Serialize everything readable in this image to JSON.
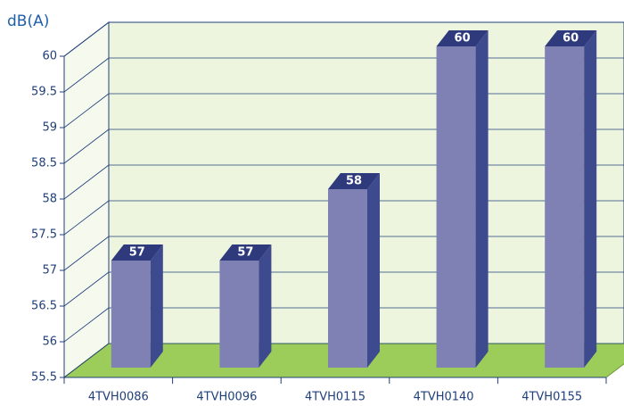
{
  "chart_data": {
    "type": "bar3d",
    "y_axis_label": "dB(A)",
    "categories": [
      "4TVH0086",
      "4TVH0096",
      "4TVH0115",
      "4TVH0140",
      "4TVH0155"
    ],
    "values": [
      57,
      57,
      58,
      60,
      60
    ],
    "color": "#7f80b4",
    "ylim": [
      55.5,
      60
    ],
    "yticks": [
      55.5,
      56,
      56.5,
      57,
      57.5,
      58,
      58.5,
      59,
      59.5,
      60
    ],
    "grid": true
  }
}
